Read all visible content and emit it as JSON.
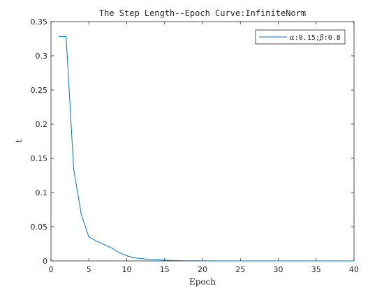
{
  "chart_data": {
    "type": "line",
    "title": "The Step Length--Epoch Curve:InfiniteNorm",
    "xlabel": "Epoch",
    "ylabel": "t",
    "xlim": [
      0,
      40
    ],
    "ylim": [
      0,
      0.35
    ],
    "xticks": [
      0,
      5,
      10,
      15,
      20,
      25,
      30,
      35,
      40
    ],
    "xtick_labels": [
      "0",
      "5",
      "10",
      "15",
      "20",
      "25",
      "30",
      "35",
      "40"
    ],
    "yticks": [
      0,
      0.05,
      0.1,
      0.15,
      0.2,
      0.25,
      0.3,
      0.35
    ],
    "ytick_labels": [
      "0",
      "0.05",
      "0.1",
      "0.15",
      "0.2",
      "0.25",
      "0.3",
      "0.35"
    ],
    "grid": false,
    "legend_position": "top-right",
    "series": [
      {
        "name_prefix": "α",
        "name_mid": ":0.15;",
        "name_prefix2": "β",
        "name_suffix": ":0.8",
        "color": "#0072BD",
        "x": [
          1,
          2,
          3,
          4,
          5,
          6,
          7,
          8,
          9,
          10,
          11,
          12,
          13,
          14,
          15,
          16,
          17,
          18,
          19,
          20,
          21,
          22,
          23,
          24,
          25,
          26,
          27,
          28,
          29,
          30,
          31,
          32,
          33,
          34,
          35,
          36,
          37,
          38,
          39,
          40
        ],
        "y": [
          0.328,
          0.328,
          0.134,
          0.068,
          0.035,
          0.029,
          0.024,
          0.019,
          0.012,
          0.0075,
          0.0045,
          0.0035,
          0.0022,
          0.0015,
          0.001,
          0.0006,
          0.0004,
          0.0003,
          0.0002,
          0.0001,
          0.0001,
          0,
          0,
          0,
          0,
          0,
          0,
          0,
          0,
          0,
          0,
          0,
          0,
          0,
          0,
          0,
          0,
          0,
          0,
          0
        ]
      }
    ]
  }
}
